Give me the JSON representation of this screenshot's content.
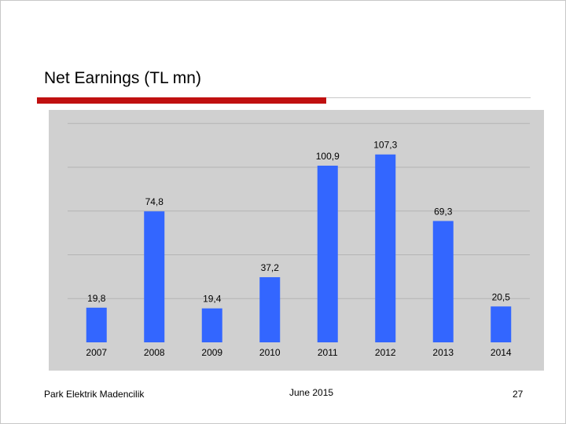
{
  "slide": {
    "title": "Net Earnings (TL mn)",
    "footer_left": "Park Elektrik Madencilik",
    "footer_center": "June 2015",
    "page_number": "27"
  },
  "colors": {
    "accent_rule": "#c01010",
    "bar": "#3366ff",
    "plot_background": "#d0d0d0",
    "gridline": "#b4b4b4"
  },
  "chart_data": {
    "type": "bar",
    "title": "",
    "xlabel": "",
    "ylabel": "",
    "categories": [
      "2007",
      "2008",
      "2009",
      "2010",
      "2011",
      "2012",
      "2013",
      "2014"
    ],
    "values": [
      19.8,
      74.8,
      19.4,
      37.2,
      100.9,
      107.3,
      69.3,
      20.5
    ],
    "data_labels": [
      "19,8",
      "74,8",
      "19,4",
      "37,2",
      "100,9",
      "107,3",
      "69,3",
      "20,5"
    ],
    "ylim": [
      0,
      125
    ],
    "y_gridlines": [
      25,
      50,
      75,
      100,
      125
    ],
    "grid": true,
    "legend": false
  }
}
